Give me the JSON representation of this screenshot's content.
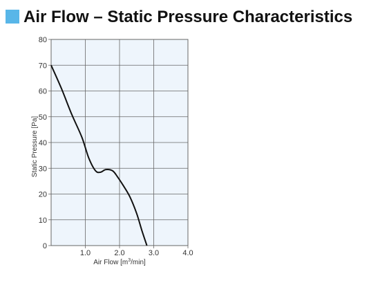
{
  "header": {
    "title": "Air Flow – Static Pressure Characteristics"
  },
  "colors": {
    "accent": "#58b6e8",
    "plot_background": "#eef5fc",
    "grid": "#666666",
    "curve": "#111111"
  },
  "chart_data": {
    "type": "line",
    "title": "",
    "xlabel": "Air Flow [m",
    "xlabel_sup": "3",
    "xlabel_suffix": "/min]",
    "ylabel": "Static Pressure [Pa]",
    "xlim": [
      0,
      4
    ],
    "ylim": [
      0,
      80
    ],
    "x_ticks": [
      1.0,
      2.0,
      3.0,
      4.0
    ],
    "x_tick_labels": [
      "1.0",
      "2.0",
      "3.0",
      "4.0"
    ],
    "y_ticks": [
      0,
      10,
      20,
      30,
      40,
      50,
      60,
      70,
      80
    ],
    "y_tick_labels": [
      "0",
      "10",
      "20",
      "30",
      "40",
      "50",
      "60",
      "70",
      "80"
    ],
    "grid": true,
    "series": [
      {
        "x": [
          0.0,
          0.3,
          0.6,
          0.9,
          1.1,
          1.3,
          1.45,
          1.6,
          1.8,
          1.95,
          2.1,
          2.3,
          2.5,
          2.65,
          2.8
        ],
        "y": [
          70,
          61,
          51,
          42,
          34,
          29,
          28.5,
          29.5,
          29,
          26.5,
          23.5,
          19,
          12.5,
          6,
          0
        ]
      }
    ]
  }
}
